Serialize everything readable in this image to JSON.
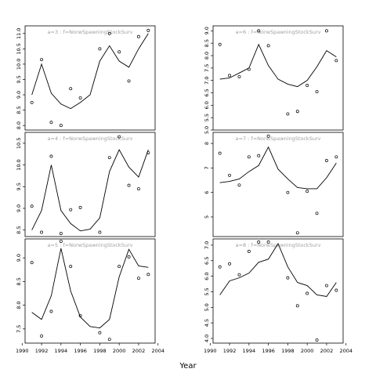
{
  "xlabel": "Year",
  "chart_data": [
    {
      "type": "line",
      "title": "a=3 : f=NorwSpawningStockSurv",
      "x": [
        1991,
        1992,
        1993,
        1994,
        1995,
        1996,
        1997,
        1998,
        1999,
        2000,
        2001,
        2002,
        2003
      ],
      "series": [
        {
          "role": "points",
          "values": [
            8.75,
            10.15,
            8.1,
            8.0,
            9.2,
            8.9,
            null,
            10.5,
            11.0,
            10.4,
            9.45,
            10.9,
            11.1
          ]
        },
        {
          "role": "line",
          "values": [
            9.0,
            10.0,
            9.05,
            8.7,
            8.55,
            8.75,
            9.0,
            10.1,
            10.6,
            10.1,
            9.9,
            10.5,
            11.0
          ]
        }
      ],
      "ylim": [
        7.85,
        11.25
      ],
      "yticks": [
        "8.0",
        "8.5",
        "9.0",
        "9.5",
        "10.0",
        "10.5",
        "11.0"
      ],
      "ytick_values": [
        8.0,
        8.5,
        9.0,
        9.5,
        10.0,
        10.5,
        11.0
      ]
    },
    {
      "type": "line",
      "title": "a=6 : f=NorwSpawningStockSurv",
      "x": [
        1991,
        1992,
        1993,
        1994,
        1995,
        1996,
        1997,
        1998,
        1999,
        2000,
        2001,
        2002,
        2003
      ],
      "series": [
        {
          "role": "points",
          "values": [
            8.45,
            7.2,
            7.15,
            7.45,
            9.0,
            8.4,
            null,
            5.65,
            5.75,
            6.8,
            6.55,
            9.0,
            7.8
          ]
        },
        {
          "role": "line",
          "values": [
            7.05,
            7.1,
            7.3,
            7.5,
            8.45,
            7.6,
            7.05,
            6.85,
            6.75,
            7.0,
            7.55,
            8.2,
            7.95
          ]
        }
      ],
      "ylim": [
        5.0,
        9.2
      ],
      "yticks": [
        "5.0",
        "5.5",
        "6.0",
        "6.5",
        "7.0",
        "7.5",
        "8.0",
        "8.5",
        "9.0"
      ],
      "ytick_values": [
        5.0,
        5.5,
        6.0,
        6.5,
        7.0,
        7.5,
        8.0,
        8.5,
        9.0
      ]
    },
    {
      "type": "line",
      "title": "a=4 : f=NorwSpawningStockSurv",
      "x": [
        1991,
        1992,
        1993,
        1994,
        1995,
        1996,
        1997,
        1998,
        1999,
        2000,
        2001,
        2002,
        2003
      ],
      "series": [
        {
          "role": "points",
          "values": [
            9.05,
            8.45,
            10.2,
            8.42,
            8.97,
            9.02,
            null,
            8.45,
            10.17,
            10.65,
            9.53,
            9.45,
            10.28
          ]
        },
        {
          "role": "line",
          "values": [
            8.5,
            8.95,
            10.0,
            8.95,
            8.65,
            8.48,
            8.52,
            8.78,
            9.85,
            10.35,
            9.95,
            9.72,
            10.35
          ]
        }
      ],
      "ylim": [
        8.35,
        10.75
      ],
      "yticks": [
        "8.5",
        "9.0",
        "9.5",
        "10.0",
        "10.5"
      ],
      "ytick_values": [
        8.5,
        9.0,
        9.5,
        10.0,
        10.5
      ]
    },
    {
      "type": "line",
      "title": "a=7 : f=NorwSpawningStockSurv",
      "x": [
        1991,
        1992,
        1993,
        1994,
        1995,
        1996,
        1997,
        1998,
        1999,
        2000,
        2001,
        2002,
        2003
      ],
      "series": [
        {
          "role": "points",
          "values": [
            7.6,
            6.7,
            6.3,
            7.45,
            7.5,
            8.3,
            null,
            6.0,
            4.35,
            6.05,
            5.15,
            7.3,
            7.45
          ]
        },
        {
          "role": "line",
          "values": [
            6.4,
            6.45,
            6.55,
            6.85,
            7.1,
            7.85,
            6.95,
            6.55,
            6.2,
            6.15,
            6.15,
            6.6,
            7.2
          ]
        }
      ],
      "ylim": [
        4.2,
        8.45
      ],
      "yticks": [
        "5",
        "6",
        "7",
        "8"
      ],
      "ytick_values": [
        5,
        6,
        7,
        8
      ]
    },
    {
      "type": "line",
      "title": "a=5 : f=NorwSpawningStockSurv",
      "x": [
        1991,
        1992,
        1993,
        1994,
        1995,
        1996,
        1997,
        1998,
        1999,
        2000,
        2001,
        2002,
        2003
      ],
      "series": [
        {
          "role": "points",
          "values": [
            8.9,
            7.35,
            7.87,
            9.35,
            8.82,
            7.78,
            null,
            7.42,
            7.28,
            8.82,
            9.02,
            8.57,
            8.65
          ]
        },
        {
          "role": "line",
          "values": [
            7.85,
            7.7,
            8.2,
            9.2,
            8.3,
            7.75,
            7.55,
            7.52,
            7.7,
            8.6,
            9.18,
            8.83,
            8.8
          ]
        }
      ],
      "ylim": [
        7.2,
        9.4
      ],
      "yticks": [
        "7.5",
        "8.0",
        "8.5",
        "9.0"
      ],
      "ytick_values": [
        7.5,
        8.0,
        8.5,
        9.0
      ]
    },
    {
      "type": "line",
      "title": "a=8 : f=NorwSpawningStockSurv",
      "x": [
        1991,
        1992,
        1993,
        1994,
        1995,
        1996,
        1997,
        1998,
        1999,
        2000,
        2001,
        2002,
        2003
      ],
      "series": [
        {
          "role": "points",
          "values": [
            6.3,
            6.4,
            6.05,
            6.8,
            7.1,
            7.1,
            null,
            5.95,
            5.05,
            5.45,
            3.95,
            5.7,
            5.55
          ]
        },
        {
          "role": "line",
          "values": [
            5.4,
            5.85,
            5.95,
            6.1,
            6.45,
            6.55,
            7.05,
            6.3,
            5.8,
            5.7,
            5.4,
            5.35,
            5.8
          ]
        }
      ],
      "ylim": [
        3.85,
        7.2
      ],
      "yticks": [
        "4.0",
        "4.5",
        "5.0",
        "5.5",
        "6.0",
        "6.5",
        "7.0"
      ],
      "ytick_values": [
        4.0,
        4.5,
        5.0,
        5.5,
        6.0,
        6.5,
        7.0
      ]
    }
  ],
  "xaxis": {
    "ticks": [
      "1990",
      "1992",
      "1994",
      "1996",
      "1998",
      "2000",
      "2002",
      "2004"
    ],
    "tick_values": [
      1990,
      1992,
      1994,
      1996,
      1998,
      2000,
      2002,
      2004
    ],
    "xlim": [
      1990.3,
      2003.7
    ]
  },
  "colors": {
    "line": "#000000",
    "frame": "#000000",
    "title": "#a0a0a0"
  }
}
